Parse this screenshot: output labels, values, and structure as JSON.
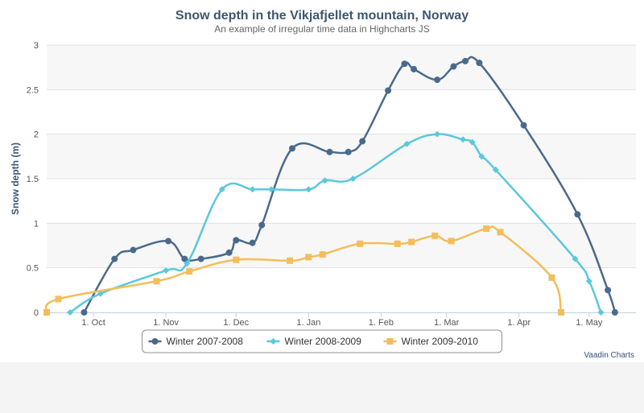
{
  "colors": {
    "series1": "#4a6a8c",
    "series2": "#5bc8dc",
    "series3": "#f3be5a",
    "title": "#3e576f",
    "axis_text": "#555555",
    "band": "#f7f7f7",
    "grid": "#e0e0e0",
    "credits": "#355079"
  },
  "legend": {
    "placement": "bottom-center",
    "markers": [
      "circle-marker",
      "diamond-marker",
      "square-marker"
    ]
  },
  "credits": {
    "text": "Vaadin Charts"
  },
  "chart_data": {
    "type": "line",
    "title": "Snow depth in the Vikjafjellet mountain, Norway",
    "subtitle": "An example of irregular time data in Highcharts JS",
    "xlabel": "",
    "ylabel": "Snow depth (m)",
    "x_axis": {
      "type": "datetime",
      "range": [
        "1970-09-11",
        "1971-05-21"
      ],
      "tick_labels": [
        {
          "label": "1. Oct",
          "date": "1970-10-01"
        },
        {
          "label": "1. Nov",
          "date": "1970-11-01"
        },
        {
          "label": "1. Dec",
          "date": "1970-12-01"
        },
        {
          "label": "1. Jan",
          "date": "1971-01-01"
        },
        {
          "label": "1. Feb",
          "date": "1971-02-01"
        },
        {
          "label": "1. Mar",
          "date": "1971-03-01"
        },
        {
          "label": "1. Apr",
          "date": "1971-04-01"
        },
        {
          "label": "1. May",
          "date": "1971-05-01"
        }
      ]
    },
    "ylim": [
      0,
      3
    ],
    "y_ticks": [
      "0",
      "0.5",
      "1",
      "1.5",
      "2",
      "2.5",
      "3"
    ],
    "grid": true,
    "alternate_bands": true,
    "series": [
      {
        "name": "Winter 2007-2008",
        "marker": "circle",
        "color": "#4a6a8c",
        "data": [
          [
            "1970-09-27",
            0
          ],
          [
            "1970-10-10",
            0.6
          ],
          [
            "1970-10-18",
            0.7
          ],
          [
            "1970-11-02",
            0.8
          ],
          [
            "1970-11-09",
            0.6
          ],
          [
            "1970-11-16",
            0.6
          ],
          [
            "1970-11-28",
            0.67
          ],
          [
            "1970-12-01",
            0.81
          ],
          [
            "1970-12-08",
            0.78
          ],
          [
            "1970-12-12",
            0.98
          ],
          [
            "1970-12-25",
            1.84
          ],
          [
            "1971-01-10",
            1.8
          ],
          [
            "1971-01-18",
            1.8
          ],
          [
            "1971-01-24",
            1.92
          ],
          [
            "1971-02-04",
            2.49
          ],
          [
            "1971-02-11",
            2.79
          ],
          [
            "1971-02-15",
            2.73
          ],
          [
            "1971-02-25",
            2.61
          ],
          [
            "1971-03-04",
            2.76
          ],
          [
            "1971-03-09",
            2.82
          ],
          [
            "1971-03-15",
            2.8
          ],
          [
            "1971-04-03",
            2.1
          ],
          [
            "1971-04-26",
            1.1
          ],
          [
            "1971-05-09",
            0.25
          ],
          [
            "1971-05-12",
            0
          ]
        ]
      },
      {
        "name": "Winter 2008-2009",
        "marker": "diamond",
        "color": "#5bc8dc",
        "data": [
          [
            "1970-09-21",
            0
          ],
          [
            "1970-10-04",
            0.21
          ],
          [
            "1970-11-01",
            0.47
          ],
          [
            "1970-11-10",
            0.55
          ],
          [
            "1970-11-25",
            1.38
          ],
          [
            "1970-12-08",
            1.38
          ],
          [
            "1970-12-16",
            1.38
          ],
          [
            "1971-01-01",
            1.38
          ],
          [
            "1971-01-08",
            1.48
          ],
          [
            "1971-01-20",
            1.5
          ],
          [
            "1971-02-12",
            1.89
          ],
          [
            "1971-02-25",
            2.0
          ],
          [
            "1971-03-08",
            1.94
          ],
          [
            "1971-03-12",
            1.91
          ],
          [
            "1971-03-16",
            1.75
          ],
          [
            "1971-03-22",
            1.6
          ],
          [
            "1971-04-25",
            0.6
          ],
          [
            "1971-05-01",
            0.35
          ],
          [
            "1971-05-06",
            0
          ]
        ]
      },
      {
        "name": "Winter 2009-2010",
        "marker": "square",
        "color": "#f3be5a",
        "data": [
          [
            "1970-09-11",
            0
          ],
          [
            "1970-09-16",
            0.15
          ],
          [
            "1970-10-28",
            0.35
          ],
          [
            "1970-11-11",
            0.46
          ],
          [
            "1970-12-01",
            0.59
          ],
          [
            "1970-12-24",
            0.58
          ],
          [
            "1971-01-01",
            0.62
          ],
          [
            "1971-01-07",
            0.65
          ],
          [
            "1971-01-23",
            0.77
          ],
          [
            "1971-02-08",
            0.77
          ],
          [
            "1971-02-14",
            0.79
          ],
          [
            "1971-02-24",
            0.86
          ],
          [
            "1971-03-03",
            0.8
          ],
          [
            "1971-03-18",
            0.94
          ],
          [
            "1971-03-24",
            0.9
          ],
          [
            "1971-04-15",
            0.39
          ],
          [
            "1971-04-19",
            0
          ]
        ]
      }
    ]
  }
}
